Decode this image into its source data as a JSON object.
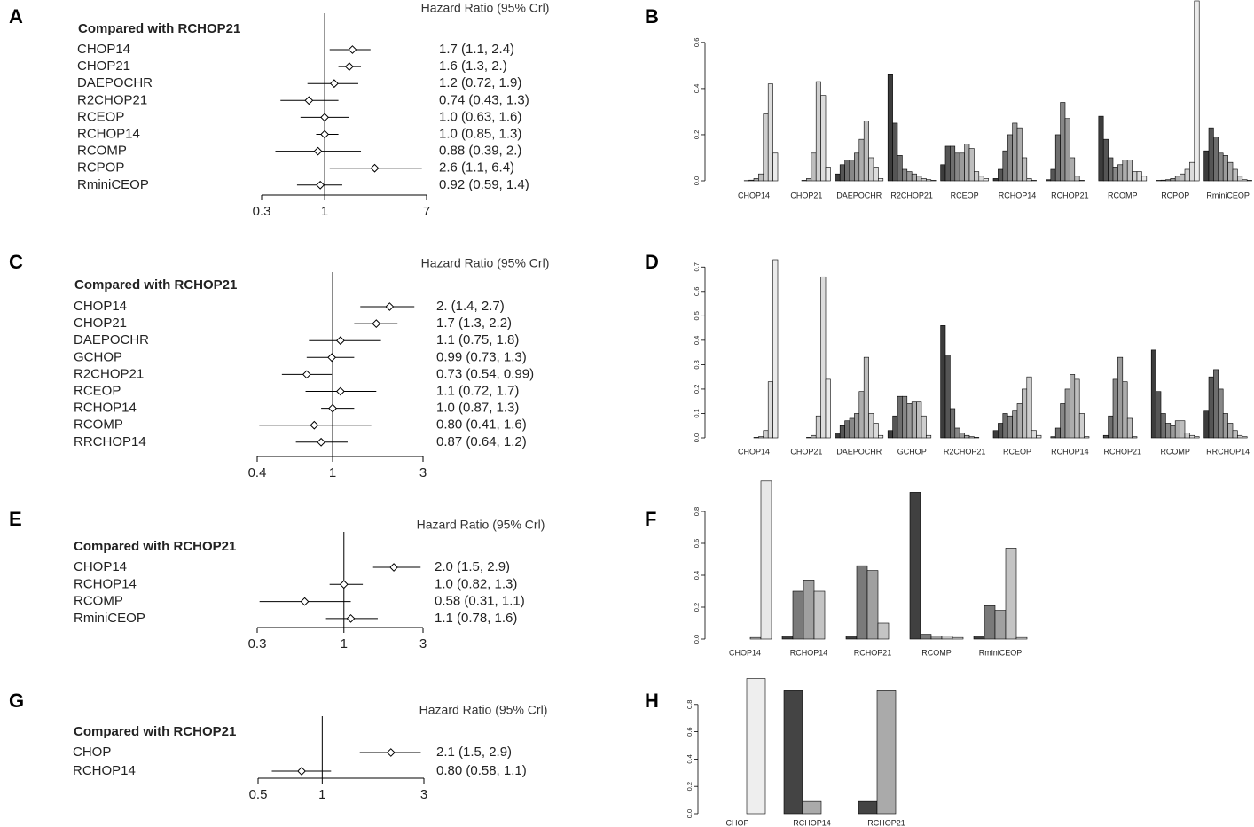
{
  "chart_data": [
    {
      "type": "forest",
      "panel": "A",
      "title": "Hazard Ratio (95% Crl)",
      "heading": "Compared with RCHOP21",
      "log_x": true,
      "reference": 1,
      "categories": [
        "CHOP14",
        "CHOP21",
        "DAEPOCHR",
        "R2CHOP21",
        "RCEOP",
        "RCHOP14",
        "RCOMP",
        "RCPOP",
        "RminiCEOP"
      ],
      "values": [
        1.7,
        1.6,
        1.2,
        0.74,
        1.0,
        1.0,
        0.88,
        2.6,
        0.92
      ],
      "ci_low": [
        1.1,
        1.3,
        0.72,
        0.43,
        0.63,
        0.85,
        0.39,
        1.1,
        0.59
      ],
      "ci_high": [
        2.4,
        2.0,
        1.9,
        1.3,
        1.6,
        1.3,
        2.0,
        6.4,
        1.4
      ],
      "value_labels": [
        "1.7 (1.1, 2.4)",
        "1.6 (1.3,  2.)",
        "1.2 (0.72, 1.9)",
        "0.74 (0.43, 1.3)",
        "1.0 (0.63, 1.6)",
        "1.0 (0.85, 1.3)",
        "0.88 (0.39,  2.)",
        "2.6 (1.1, 6.4)",
        "0.92 (0.59, 1.4)"
      ],
      "xlim": [
        0.3,
        7
      ],
      "xticks": [
        0.3,
        1,
        7
      ]
    },
    {
      "type": "bar",
      "panel": "B",
      "categories": [
        "CHOP14",
        "CHOP21",
        "DAEPOCHR",
        "R2CHOP21",
        "RCEOP",
        "RCHOP14",
        "RCHOP21",
        "RCOMP",
        "RCPOP",
        "RminiCEOP"
      ],
      "series": [
        {
          "color": "#3c3c3c",
          "values": [
            0,
            0,
            0.03,
            0.46,
            0.07,
            0.01,
            0.005,
            0.28,
            0,
            0.13
          ]
        },
        {
          "color": "#555555",
          "values": [
            0,
            0,
            0.07,
            0.25,
            0.15,
            0.05,
            0.05,
            0.18,
            0.002,
            0.23
          ]
        },
        {
          "color": "#6e6e6e",
          "values": [
            0,
            0,
            0.09,
            0.11,
            0.15,
            0.13,
            0.2,
            0.1,
            0.003,
            0.19
          ]
        },
        {
          "color": "#878787",
          "values": [
            0.001,
            0,
            0.09,
            0.05,
            0.12,
            0.2,
            0.34,
            0.06,
            0.005,
            0.12
          ]
        },
        {
          "color": "#9b9b9b",
          "values": [
            0.003,
            0.002,
            0.12,
            0.04,
            0.12,
            0.25,
            0.27,
            0.07,
            0.01,
            0.11
          ]
        },
        {
          "color": "#adadad",
          "values": [
            0.01,
            0.01,
            0.18,
            0.03,
            0.16,
            0.23,
            0.1,
            0.09,
            0.02,
            0.08
          ]
        },
        {
          "color": "#bebebe",
          "values": [
            0.03,
            0.12,
            0.26,
            0.02,
            0.14,
            0.1,
            0.02,
            0.09,
            0.03,
            0.05
          ]
        },
        {
          "color": "#cecece",
          "values": [
            0.29,
            0.43,
            0.1,
            0.01,
            0.04,
            0.01,
            0.002,
            0.04,
            0.05,
            0.02
          ]
        },
        {
          "color": "#dcdcdc",
          "values": [
            0.42,
            0.37,
            0.06,
            0.005,
            0.02,
            0.002,
            0,
            0.04,
            0.08,
            0.005
          ]
        },
        {
          "color": "#ebebeb",
          "values": [
            0.12,
            0.06,
            0.01,
            0.002,
            0.01,
            0,
            0,
            0.02,
            0.78,
            0.002
          ]
        }
      ],
      "ylim": [
        0,
        0.78
      ],
      "yticks": [
        {
          "value": 0,
          "label": "0.0"
        },
        0.2,
        0.4,
        0.6
      ]
    },
    {
      "type": "forest",
      "panel": "C",
      "title": "Hazard Ratio (95% Crl)",
      "heading": "Compared with RCHOP21",
      "log_x": true,
      "reference": 1,
      "categories": [
        "CHOP14",
        "CHOP21",
        "DAEPOCHR",
        "GCHOP",
        "R2CHOP21",
        "RCEOP",
        "RCHOP14",
        "RCOMP",
        "RRCHOP14"
      ],
      "values": [
        2,
        1.7,
        1.1,
        0.99,
        0.73,
        1.1,
        1.0,
        0.8,
        0.87
      ],
      "ci_low": [
        1.4,
        1.3,
        0.75,
        0.73,
        0.54,
        0.72,
        0.87,
        0.41,
        0.64
      ],
      "ci_high": [
        2.7,
        2.2,
        1.8,
        1.3,
        0.99,
        1.7,
        1.3,
        1.6,
        1.2
      ],
      "value_labels": [
        "2. (1.4, 2.7)",
        "1.7 (1.3, 2.2)",
        "1.1 (0.75, 1.8)",
        "0.99 (0.73, 1.3)",
        "0.73 (0.54, 0.99)",
        "1.1 (0.72, 1.7)",
        "1.0 (0.87, 1.3)",
        "0.80 (0.41, 1.6)",
        "0.87 (0.64, 1.2)"
      ],
      "xlim": [
        0.4,
        3
      ],
      "xticks": [
        0.4,
        1,
        3
      ]
    },
    {
      "type": "bar",
      "panel": "D",
      "categories": [
        "CHOP14",
        "CHOP21",
        "DAEPOCHR",
        "GCHOP",
        "R2CHOP21",
        "RCEOP",
        "RCHOP14",
        "RCHOP21",
        "RCOMP",
        "RRCHOP14"
      ],
      "series": [
        {
          "color": "#3c3c3c",
          "values": [
            0,
            0,
            0.02,
            0.03,
            0.46,
            0.03,
            0,
            0,
            0.36,
            0.11
          ]
        },
        {
          "color": "#555555",
          "values": [
            0,
            0,
            0.05,
            0.09,
            0.34,
            0.06,
            0.005,
            0.01,
            0.19,
            0.25
          ]
        },
        {
          "color": "#6e6e6e",
          "values": [
            0,
            0,
            0.07,
            0.17,
            0.12,
            0.1,
            0.04,
            0.09,
            0.1,
            0.28
          ]
        },
        {
          "color": "#878787",
          "values": [
            0,
            0,
            0.08,
            0.17,
            0.04,
            0.09,
            0.14,
            0.24,
            0.06,
            0.2
          ]
        },
        {
          "color": "#9b9b9b",
          "values": [
            0,
            0,
            0.1,
            0.14,
            0.02,
            0.11,
            0.2,
            0.33,
            0.05,
            0.1
          ]
        },
        {
          "color": "#adadad",
          "values": [
            0.002,
            0.002,
            0.19,
            0.15,
            0.01,
            0.14,
            0.26,
            0.23,
            0.07,
            0.06
          ]
        },
        {
          "color": "#bebebe",
          "values": [
            0.005,
            0.01,
            0.33,
            0.15,
            0.005,
            0.2,
            0.24,
            0.08,
            0.07,
            0.03
          ]
        },
        {
          "color": "#cecece",
          "values": [
            0.03,
            0.09,
            0.1,
            0.09,
            0.002,
            0.25,
            0.1,
            0.005,
            0.02,
            0.01
          ]
        },
        {
          "color": "#dcdcdc",
          "values": [
            0.23,
            0.66,
            0.06,
            0.01,
            0,
            0.03,
            0.005,
            0,
            0.01,
            0.005
          ]
        },
        {
          "color": "#ebebeb",
          "values": [
            0.73,
            0.24,
            0.01,
            0,
            0,
            0.01,
            0,
            0,
            0.005,
            0
          ]
        }
      ],
      "ylim": [
        0,
        0.73
      ],
      "yticks": [
        {
          "value": 0,
          "label": "0.0"
        },
        0.1,
        0.2,
        0.3,
        0.4,
        0.5,
        0.6,
        0.7
      ]
    },
    {
      "type": "forest",
      "panel": "E",
      "title": "Hazard Ratio (95% Crl)",
      "heading": "Compared with RCHOP21",
      "log_x": true,
      "reference": 1,
      "categories": [
        "CHOP14",
        "RCHOP14",
        "RCOMP",
        "RminiCEOP"
      ],
      "values": [
        2.0,
        1.0,
        0.58,
        1.1
      ],
      "ci_low": [
        1.5,
        0.82,
        0.31,
        0.78
      ],
      "ci_high": [
        2.9,
        1.3,
        1.1,
        1.6
      ],
      "value_labels": [
        "2.0 (1.5, 2.9)",
        "1.0 (0.82, 1.3)",
        "0.58 (0.31, 1.1)",
        "1.1 (0.78, 1.6)"
      ],
      "xlim": [
        0.3,
        3
      ],
      "xticks": [
        0.3,
        1,
        3
      ]
    },
    {
      "type": "bar",
      "panel": "F",
      "categories": [
        "CHOP14",
        "RCHOP14",
        "RCHOP21",
        "RCOMP",
        "RminiCEOP"
      ],
      "series": [
        {
          "color": "#404040",
          "values": [
            0,
            0.02,
            0.02,
            0.92,
            0.02
          ]
        },
        {
          "color": "#7a7a7a",
          "values": [
            0,
            0.3,
            0.46,
            0.03,
            0.21
          ]
        },
        {
          "color": "#a0a0a0",
          "values": [
            0,
            0.37,
            0.43,
            0.02,
            0.18
          ]
        },
        {
          "color": "#c4c4c4",
          "values": [
            0.01,
            0.3,
            0.1,
            0.02,
            0.57
          ]
        },
        {
          "color": "#e8e8e8",
          "values": [
            0.99,
            0,
            0,
            0.01,
            0.01
          ]
        }
      ],
      "ylim": [
        0,
        1
      ],
      "yticks": [
        {
          "value": 0,
          "label": "0.0"
        },
        0.2,
        0.4,
        0.6,
        0.8
      ]
    },
    {
      "type": "forest",
      "panel": "G",
      "title": "Hazard Ratio (95% Crl)",
      "heading": "Compared with RCHOP21",
      "log_x": true,
      "reference": 1,
      "categories": [
        "CHOP",
        "RCHOP14"
      ],
      "values": [
        2.1,
        0.8
      ],
      "ci_low": [
        1.5,
        0.58
      ],
      "ci_high": [
        2.9,
        1.1
      ],
      "value_labels": [
        "2.1 (1.5, 2.9)",
        "0.80 (0.58, 1.1)"
      ],
      "xlim": [
        0.5,
        3
      ],
      "xticks": [
        0.5,
        1,
        3
      ]
    },
    {
      "type": "bar",
      "panel": "H",
      "categories": [
        "CHOP",
        "RCHOP14",
        "RCHOP21"
      ],
      "series": [
        {
          "color": "#444444",
          "values": [
            0,
            0.9,
            0.09
          ]
        },
        {
          "color": "#aaaaaa",
          "values": [
            0,
            0.09,
            0.9
          ]
        },
        {
          "color": "#eeeeee",
          "values": [
            0.99,
            0,
            0
          ]
        }
      ],
      "ylim": [
        0,
        1
      ],
      "yticks": [
        {
          "value": 0,
          "label": "0.0"
        },
        0.2,
        0.4,
        0.6,
        0.8
      ]
    }
  ]
}
